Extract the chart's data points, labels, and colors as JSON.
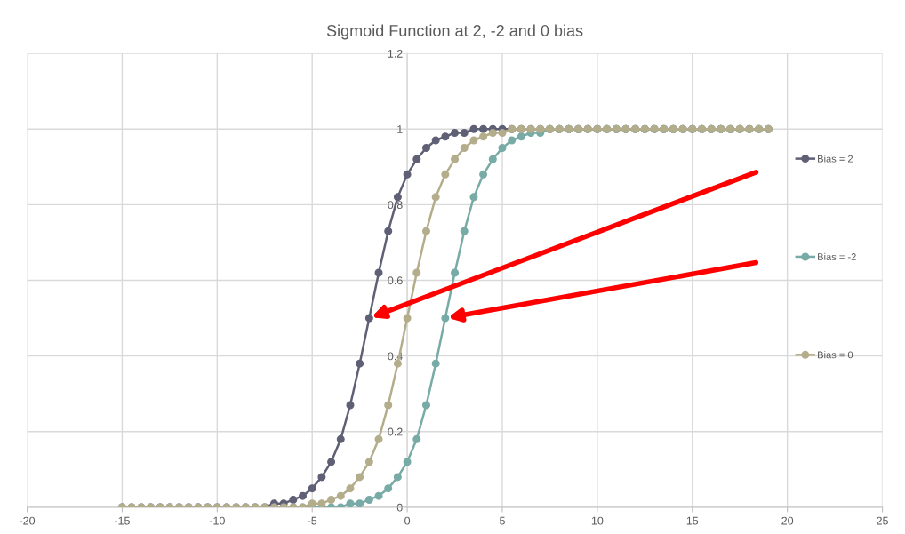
{
  "chart_data": {
    "type": "line",
    "title": "Sigmoid Function at 2, -2 and 0 bias",
    "x": [
      -15,
      -14.5,
      -14,
      -13.5,
      -13,
      -12.5,
      -12,
      -11.5,
      -11,
      -10.5,
      -10,
      -9.5,
      -9,
      -8.5,
      -8,
      -7.5,
      -7,
      -6.5,
      -6,
      -5.5,
      -5,
      -4.5,
      -4,
      -3.5,
      -3,
      -2.5,
      -2,
      -1.5,
      -1,
      -0.5,
      0,
      0.5,
      1,
      1.5,
      2,
      2.5,
      3,
      3.5,
      4,
      4.5,
      5,
      5.5,
      6,
      6.5,
      7,
      7.5,
      8,
      8.5,
      9,
      9.5,
      10,
      10.5,
      11,
      11.5,
      12,
      12.5,
      13,
      13.5,
      14,
      14.5,
      15,
      15.5,
      16,
      16.5,
      17,
      17.5,
      18,
      18.5,
      19
    ],
    "series": [
      {
        "name": "Bias = 2",
        "color": "#5f6075",
        "values": [
          0,
          0,
          0,
          0,
          0,
          0,
          0,
          0,
          0,
          0,
          0,
          0,
          0,
          0,
          0,
          0,
          0.01,
          0.01,
          0.02,
          0.03,
          0.05,
          0.08,
          0.12,
          0.18,
          0.27,
          0.38,
          0.5,
          0.62,
          0.73,
          0.82,
          0.88,
          0.92,
          0.95,
          0.97,
          0.98,
          0.99,
          0.99,
          1,
          1,
          1,
          1,
          1,
          1,
          1,
          1,
          1,
          1,
          1,
          1,
          1,
          1,
          1,
          1,
          1,
          1,
          1,
          1,
          1,
          1,
          1,
          1,
          1,
          1,
          1,
          1,
          1,
          1,
          1,
          1
        ]
      },
      {
        "name": "Bias = -2",
        "color": "#78aba6",
        "values": [
          0,
          0,
          0,
          0,
          0,
          0,
          0,
          0,
          0,
          0,
          0,
          0,
          0,
          0,
          0,
          0,
          0,
          0,
          0,
          0,
          0,
          0,
          0,
          0,
          0.01,
          0.01,
          0.02,
          0.03,
          0.05,
          0.08,
          0.12,
          0.18,
          0.27,
          0.38,
          0.5,
          0.62,
          0.73,
          0.82,
          0.88,
          0.92,
          0.95,
          0.97,
          0.98,
          0.99,
          0.99,
          1,
          1,
          1,
          1,
          1,
          1,
          1,
          1,
          1,
          1,
          1,
          1,
          1,
          1,
          1,
          1,
          1,
          1,
          1,
          1,
          1,
          1,
          1,
          1
        ]
      },
      {
        "name": "Bias = 0",
        "color": "#b4ad8b",
        "values": [
          0,
          0,
          0,
          0,
          0,
          0,
          0,
          0,
          0,
          0,
          0,
          0,
          0,
          0,
          0,
          0,
          0,
          0,
          0,
          0,
          0.01,
          0.01,
          0.02,
          0.03,
          0.05,
          0.08,
          0.12,
          0.18,
          0.27,
          0.38,
          0.5,
          0.62,
          0.73,
          0.82,
          0.88,
          0.92,
          0.95,
          0.97,
          0.98,
          0.99,
          0.99,
          1,
          1,
          1,
          1,
          1,
          1,
          1,
          1,
          1,
          1,
          1,
          1,
          1,
          1,
          1,
          1,
          1,
          1,
          1,
          1,
          1,
          1,
          1,
          1,
          1,
          1,
          1,
          1
        ]
      }
    ],
    "xlim": [
      -20,
      25
    ],
    "xticks": [
      -20,
      -15,
      -10,
      -5,
      0,
      5,
      10,
      15,
      20,
      25
    ],
    "ylim": [
      0,
      1.2
    ],
    "yticks": [
      0,
      0.2,
      0.4,
      0.6,
      0.8,
      1,
      1.2
    ],
    "grid": true,
    "legend": "right",
    "marker": "circle",
    "line_style": "solid"
  }
}
